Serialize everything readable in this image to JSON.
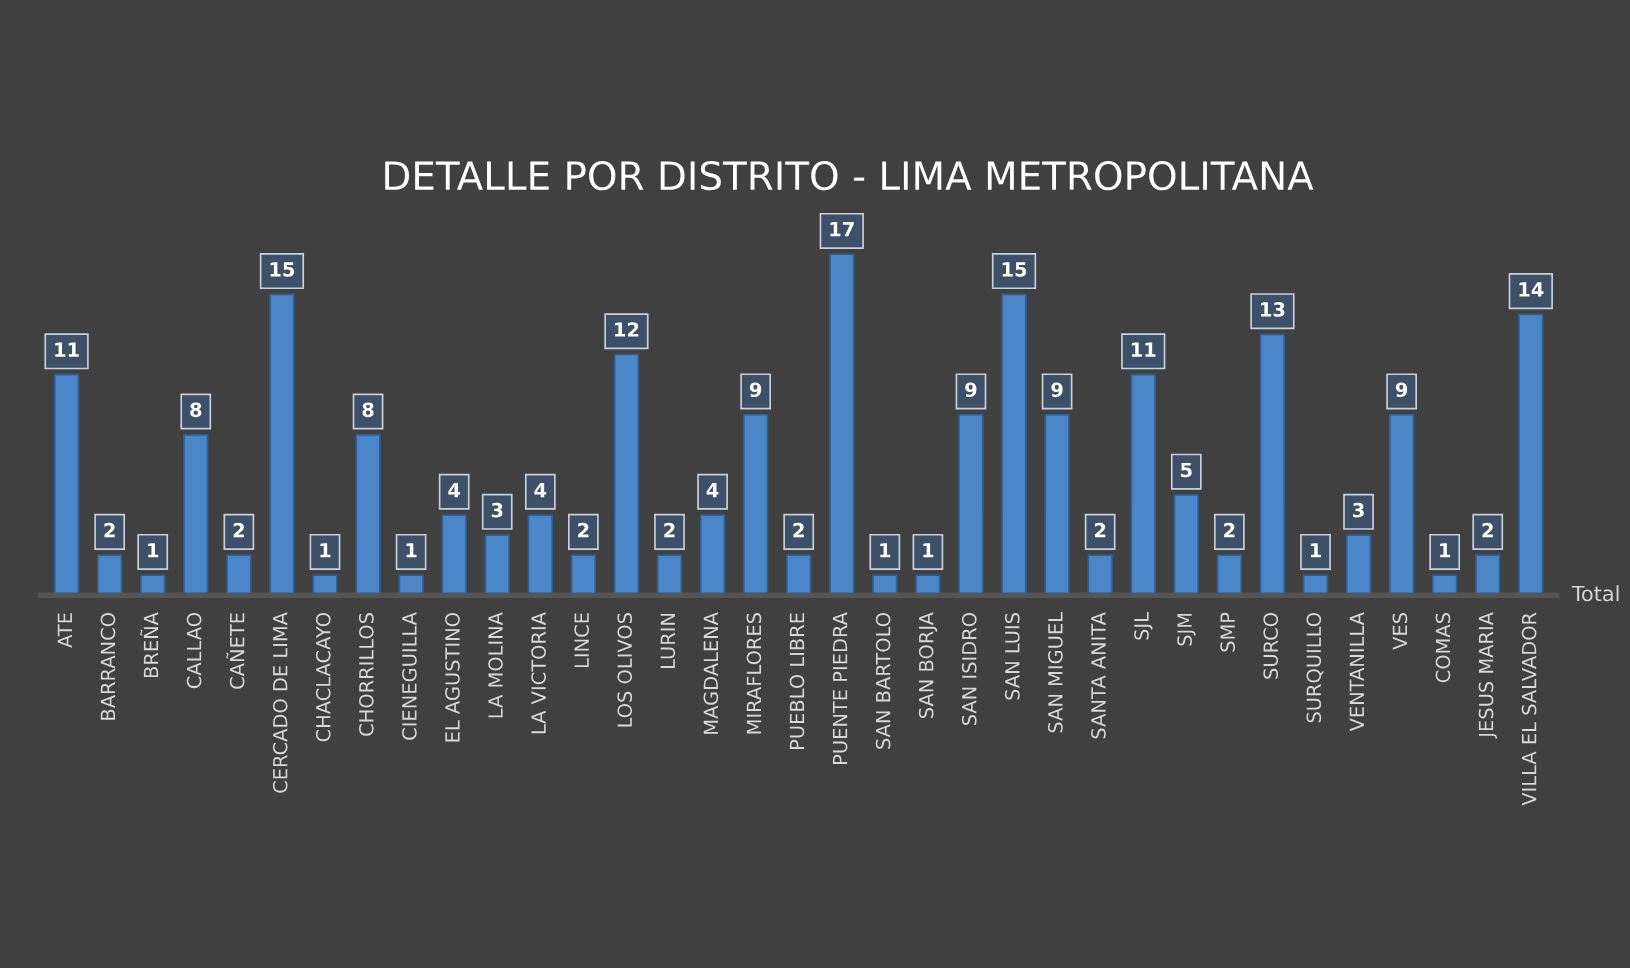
{
  "chart_data": {
    "type": "bar",
    "title": "DETALLE POR DISTRITO - LIMA METROPOLITANA",
    "categories": [
      "ATE",
      "BARRANCO",
      "BREÑA",
      "CALLAO",
      "CAÑETE",
      "CERCADO DE LIMA",
      "CHACLACAYO",
      "CHORRILLOS",
      "CIENEGUILLA",
      "EL AGUSTINO",
      "LA MOLINA",
      "LA VICTORIA",
      "LINCE",
      "LOS OLIVOS",
      "LURIN",
      "MAGDALENA",
      "MIRAFLORES",
      "PUEBLO LIBRE",
      "PUENTE PIEDRA",
      "SAN BARTOLO",
      "SAN BORJA",
      "SAN ISIDRO",
      "SAN LUIS",
      "SAN MIGUEL",
      "SANTA ANITA",
      "SJL",
      "SJM",
      "SMP",
      "SURCO",
      "SURQUILLO",
      "VENTANILLA",
      "VES",
      "COMAS",
      "JESUS MARIA",
      "VILLA EL SALVADOR"
    ],
    "series": [
      {
        "name": "Total",
        "color": "#4a86c8",
        "values": [
          11,
          2,
          1,
          8,
          2,
          15,
          1,
          8,
          1,
          4,
          3,
          4,
          2,
          12,
          2,
          4,
          9,
          2,
          17,
          1,
          1,
          9,
          15,
          9,
          2,
          11,
          5,
          2,
          13,
          1,
          3,
          9,
          1,
          2,
          14
        ]
      }
    ],
    "data_labels": true,
    "grid": false,
    "legend": false
  }
}
